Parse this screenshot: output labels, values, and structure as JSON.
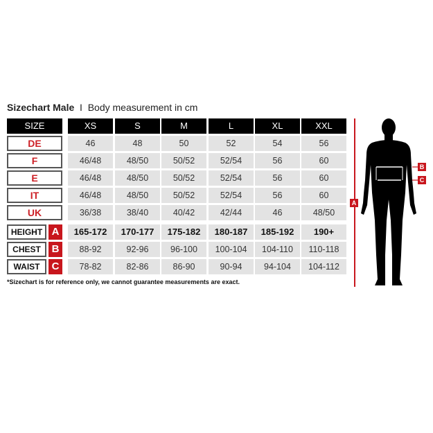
{
  "title": {
    "bold": "Sizechart Male",
    "separator": "I",
    "subtitle": "Body measurement in cm"
  },
  "header": {
    "label": "SIZE",
    "sizes": [
      "XS",
      "S",
      "M",
      "L",
      "XL",
      "XXL"
    ]
  },
  "conversion_rows": [
    {
      "label": "DE",
      "values": [
        "46",
        "48",
        "50",
        "52",
        "54",
        "56"
      ]
    },
    {
      "label": "F",
      "values": [
        "46/48",
        "48/50",
        "50/52",
        "52/54",
        "56",
        "60"
      ]
    },
    {
      "label": "E",
      "values": [
        "46/48",
        "48/50",
        "50/52",
        "52/54",
        "56",
        "60"
      ]
    },
    {
      "label": "IT",
      "values": [
        "46/48",
        "48/50",
        "50/52",
        "52/54",
        "56",
        "60"
      ]
    },
    {
      "label": "UK",
      "values": [
        "36/38",
        "38/40",
        "40/42",
        "42/44",
        "46",
        "48/50"
      ]
    }
  ],
  "measurement_rows": [
    {
      "label": "HEIGHT",
      "letter": "A",
      "values": [
        "165-172",
        "170-177",
        "175-182",
        "180-187",
        "185-192",
        "190+"
      ]
    },
    {
      "label": "CHEST",
      "letter": "B",
      "values": [
        "88-92",
        "92-96",
        "96-100",
        "100-104",
        "104-110",
        "110-118"
      ]
    },
    {
      "label": "WAIST",
      "letter": "C",
      "values": [
        "78-82",
        "82-86",
        "86-90",
        "90-94",
        "94-104",
        "104-112"
      ]
    }
  ],
  "footnote": "*Sizechart is for reference only, we cannot guarantee measurements are exact.",
  "figure": {
    "height_marker": "A",
    "chest_marker": "B",
    "waist_marker": "C"
  },
  "colors": {
    "accent": "#c8161d",
    "header": "#000000",
    "cell": "#e3e3e3"
  }
}
